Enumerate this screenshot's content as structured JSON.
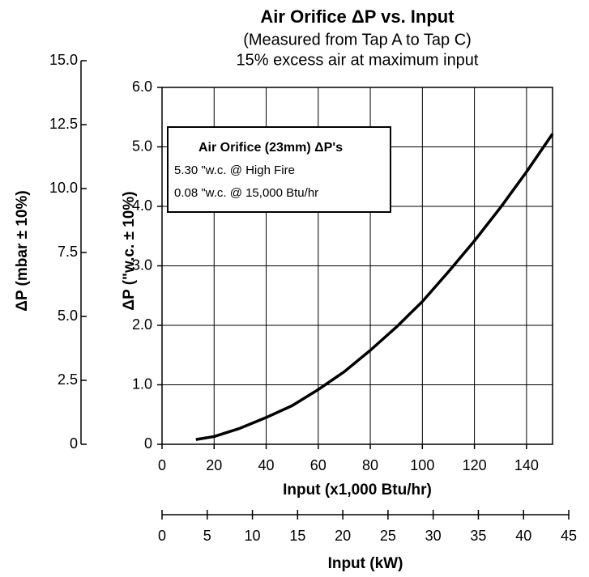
{
  "chart_data": {
    "type": "line",
    "title": "Air Orifice ΔP vs. Input",
    "subtitle": "(Measured from Tap A to Tap C)",
    "subtitle2": "15% excess air at maximum input",
    "x_label": "Input (x1,000 Btu/hr)",
    "x2_label": "Input (kW)",
    "y_label": "ΔP (\"w.c. ± 10%)",
    "y2_label": "ΔP (mbar ± 10%)",
    "annotation": {
      "title": "Air Orifice (23mm) ΔP's",
      "lines": [
        "5.30 \"w.c. @ High Fire",
        "0.08 \"w.c. @ 15,000 Btu/hr"
      ]
    },
    "x": [
      13,
      20,
      30,
      40,
      50,
      60,
      70,
      80,
      90,
      100,
      110,
      120,
      130,
      140,
      150
    ],
    "series": [
      {
        "name": "Air Orifice ΔP",
        "color": "#000000",
        "values": [
          0.08,
          0.13,
          0.27,
          0.45,
          0.65,
          0.92,
          1.22,
          1.58,
          1.97,
          2.4,
          2.9,
          3.42,
          3.98,
          4.58,
          5.22
        ]
      }
    ],
    "xlim": [
      0,
      150
    ],
    "xticks": [
      0,
      20,
      40,
      60,
      80,
      100,
      120,
      140
    ],
    "x2lim": [
      0,
      45
    ],
    "x2ticks": [
      0,
      5,
      10,
      15,
      20,
      25,
      30,
      35,
      40,
      45
    ],
    "ylim": [
      0,
      6
    ],
    "yticks": [
      0,
      {
        "value": 1,
        "label": "1.0"
      },
      {
        "value": 2,
        "label": "2.0"
      },
      {
        "value": 3,
        "label": "3.0"
      },
      {
        "value": 4,
        "label": "4.0"
      },
      {
        "value": 5,
        "label": "5.0"
      },
      {
        "value": 6,
        "label": "6.0"
      }
    ],
    "y2lim": [
      0,
      15
    ],
    "y2ticks": [
      0,
      2.5,
      {
        "value": 5,
        "label": "5.0"
      },
      7.5,
      {
        "value": 10,
        "label": "10.0"
      },
      12.5,
      {
        "value": 15,
        "label": "15.0"
      }
    ],
    "grid": true
  }
}
